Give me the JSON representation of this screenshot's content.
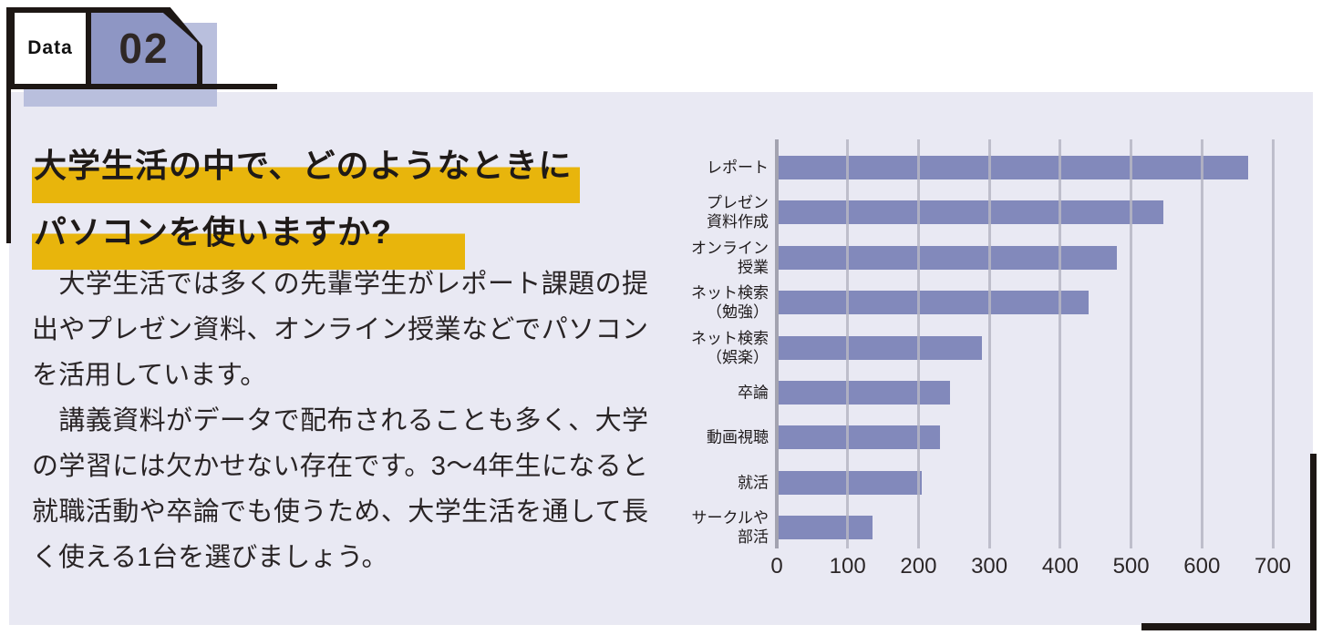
{
  "colors": {
    "panel_bg": "#e9e9f3",
    "badge_purple": "#8e96c4",
    "badge_shadow": "#b9bfdd",
    "bar_purple": "#8289bb",
    "highlight_yellow": "#e8b50c",
    "frame_black": "#1d1714",
    "gridline_gray": "#b6b6c3"
  },
  "badge": {
    "kicker": "Data",
    "number": "02"
  },
  "title": {
    "line1": "大学生活の中で、どのようなときに",
    "line2": "パソコンを使いますか?"
  },
  "article": {
    "p1": "　大学生活では多くの先輩学生がレポート課題の提出やプレゼン資料、オンライン授業などでパソコンを活用しています。",
    "p2": "　講義資料がデータで配布されることも多く、大学の学習には欠かせない存在です。3～4年生になると就職活動や卒論でも使うため、大学生活を通して長く使える1台を選びましょう。"
  },
  "chart_data": {
    "type": "bar",
    "orientation": "horizontal",
    "categories": [
      "レポート",
      "プレゼン資料作成",
      "オンライン授業",
      "ネット検索（勉強）",
      "ネット検索（娯楽）",
      "卒論",
      "動画視聴",
      "就活",
      "サークルや部活"
    ],
    "category_label_lines": [
      [
        "レポート"
      ],
      [
        "プレゼン",
        "資料作成"
      ],
      [
        "オンライン",
        "授業"
      ],
      [
        "ネット検索",
        "（勉強）"
      ],
      [
        "ネット検索",
        "（娯楽）"
      ],
      [
        "卒論"
      ],
      [
        "動画視聴"
      ],
      [
        "就活"
      ],
      [
        "サークルや",
        "部活"
      ]
    ],
    "values": [
      665,
      545,
      480,
      440,
      290,
      245,
      230,
      205,
      135
    ],
    "xlim": [
      0,
      700
    ],
    "xticks": [
      0,
      100,
      200,
      300,
      400,
      500,
      600,
      700
    ],
    "grid": true,
    "legend": false,
    "bar_color": "#8289bb"
  }
}
